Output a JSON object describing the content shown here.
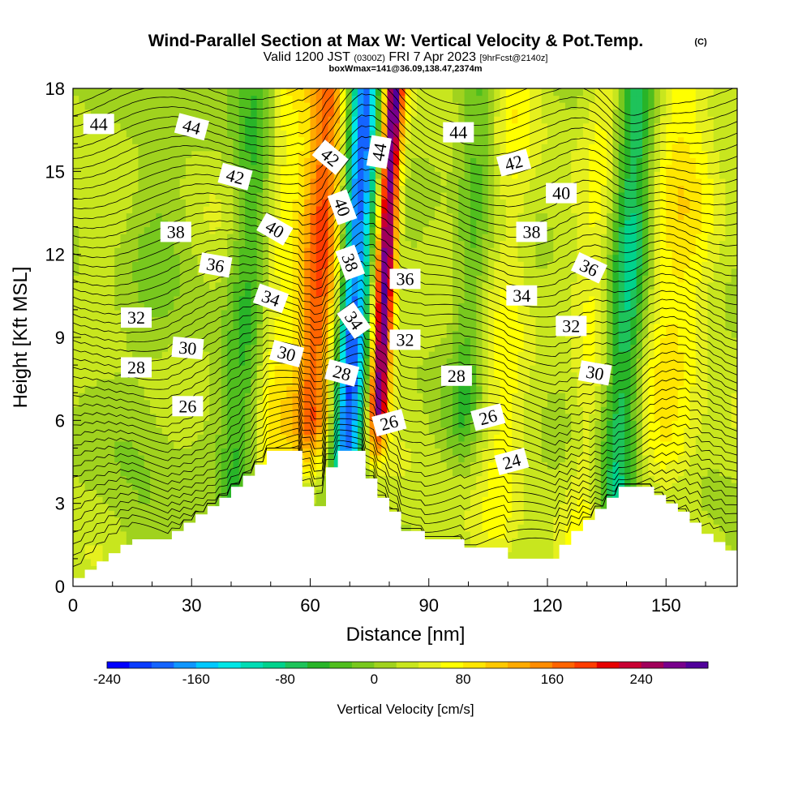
{
  "title": {
    "main": "Wind-Parallel Section at Max W: Vertical Velocity & Pot.Temp.",
    "copyright": "(C)",
    "valid_prefix": "Valid 1200 JST",
    "valid_utc": "(0300Z)",
    "valid_date": "FRI 7 Apr 2023",
    "forecast": "[9hrFcst@2140z]",
    "boxwmax": "boxWmax=141@36.09,138.47,2374m"
  },
  "chart_data": {
    "type": "heatmap",
    "xlabel": "Distance [nm]",
    "ylabel": "Height [Kft MSL]",
    "xlim": [
      0,
      168
    ],
    "ylim": [
      0,
      18
    ],
    "x_ticks": [
      "0",
      "30",
      "60",
      "90",
      "120",
      "150"
    ],
    "x_tick_values": [
      0,
      30,
      60,
      90,
      120,
      150
    ],
    "y_ticks": [
      "0",
      "3",
      "6",
      "9",
      "12",
      "15",
      "18"
    ],
    "y_tick_values": [
      0,
      3,
      6,
      9,
      12,
      15,
      18
    ],
    "colorbar": {
      "label": "Vertical Velocity [cm/s]",
      "range": [
        -240,
        300
      ],
      "tick_labels": [
        "-240",
        "-160",
        "-80",
        "0",
        "80",
        "160",
        "240"
      ],
      "tick_values": [
        -240,
        -160,
        -80,
        0,
        80,
        160,
        240
      ],
      "colors": [
        "#0000ff",
        "#0a3cff",
        "#1464ff",
        "#0f96ff",
        "#00c8ff",
        "#00e6e6",
        "#00dcb4",
        "#00d28c",
        "#1ec35a",
        "#28b428",
        "#50be1e",
        "#78c81e",
        "#a0d21e",
        "#c8e61e",
        "#e6f01e",
        "#ffff00",
        "#ffe600",
        "#ffc800",
        "#ffaa00",
        "#ff8c00",
        "#ff6400",
        "#ff3c00",
        "#e60000",
        "#c80032",
        "#a0005a",
        "#78008c",
        "#50009a"
      ]
    },
    "velocity_features": [
      {
        "center_nm": 62,
        "width_nm": 5,
        "value": 150,
        "ymin": 6
      },
      {
        "center_nm": 71,
        "width_nm": 4,
        "value": -220,
        "ymin": 5
      },
      {
        "center_nm": 78.5,
        "width_nm": 2.5,
        "value": 260,
        "ymin": 6.5
      },
      {
        "center_nm": 52,
        "width_nm": 6,
        "value": 50,
        "ymin": 0
      },
      {
        "center_nm": 44,
        "width_nm": 5,
        "value": -70,
        "ymin": 3
      },
      {
        "center_nm": 100,
        "width_nm": 4,
        "value": -50,
        "ymin": 6
      },
      {
        "center_nm": 110,
        "width_nm": 5,
        "value": 40,
        "ymin": 2
      },
      {
        "center_nm": 140,
        "width_nm": 5,
        "value": -110,
        "ymin": 3
      },
      {
        "center_nm": 152,
        "width_nm": 8,
        "value": 60,
        "ymin": 5
      },
      {
        "center_nm": 20,
        "width_nm": 8,
        "value": -20,
        "ymin": 0
      },
      {
        "center_nm": 132,
        "width_nm": 5,
        "value": 40,
        "ymin": 2
      }
    ],
    "theta_contour_labels": [
      {
        "text": "44",
        "x": 6.5,
        "y": 16.7,
        "angle": 0
      },
      {
        "text": "44",
        "x": 30,
        "y": 16.6,
        "angle": 15
      },
      {
        "text": "42",
        "x": 41,
        "y": 14.8,
        "angle": 15
      },
      {
        "text": "38",
        "x": 26,
        "y": 12.8,
        "angle": 0
      },
      {
        "text": "40",
        "x": 51,
        "y": 12.9,
        "angle": 30
      },
      {
        "text": "36",
        "x": 36,
        "y": 11.6,
        "angle": 10
      },
      {
        "text": "34",
        "x": 50,
        "y": 10.4,
        "angle": 20
      },
      {
        "text": "32",
        "x": 16,
        "y": 9.7,
        "angle": 0
      },
      {
        "text": "30",
        "x": 29,
        "y": 8.6,
        "angle": 5
      },
      {
        "text": "30",
        "x": 54,
        "y": 8.4,
        "angle": 15
      },
      {
        "text": "28",
        "x": 16,
        "y": 7.9,
        "angle": 0
      },
      {
        "text": "26",
        "x": 29,
        "y": 6.5,
        "angle": 0
      },
      {
        "text": "42",
        "x": 65,
        "y": 15.5,
        "angle": 40
      },
      {
        "text": "40",
        "x": 68,
        "y": 13.7,
        "angle": 70
      },
      {
        "text": "38",
        "x": 70,
        "y": 11.7,
        "angle": 70
      },
      {
        "text": "34",
        "x": 71,
        "y": 9.6,
        "angle": 55
      },
      {
        "text": "28",
        "x": 68,
        "y": 7.7,
        "angle": 15
      },
      {
        "text": "44",
        "x": 77.5,
        "y": 15.7,
        "angle": -80
      },
      {
        "text": "36",
        "x": 84,
        "y": 11.1,
        "angle": 0
      },
      {
        "text": "32",
        "x": 84,
        "y": 8.9,
        "angle": 0
      },
      {
        "text": "26",
        "x": 80,
        "y": 5.9,
        "angle": -15
      },
      {
        "text": "44",
        "x": 97.5,
        "y": 16.4,
        "angle": 0
      },
      {
        "text": "42",
        "x": 111.5,
        "y": 15.3,
        "angle": -15
      },
      {
        "text": "40",
        "x": 123.5,
        "y": 14.2,
        "angle": 0
      },
      {
        "text": "38",
        "x": 116,
        "y": 12.8,
        "angle": 0
      },
      {
        "text": "36",
        "x": 130.5,
        "y": 11.5,
        "angle": 25
      },
      {
        "text": "34",
        "x": 113.5,
        "y": 10.5,
        "angle": 0
      },
      {
        "text": "32",
        "x": 126,
        "y": 9.4,
        "angle": 0
      },
      {
        "text": "30",
        "x": 132,
        "y": 7.7,
        "angle": 10
      },
      {
        "text": "28",
        "x": 97,
        "y": 7.6,
        "angle": 0
      },
      {
        "text": "26",
        "x": 105,
        "y": 6.1,
        "angle": -15
      },
      {
        "text": "24",
        "x": 111,
        "y": 4.5,
        "angle": -15
      }
    ],
    "terrain": [
      [
        0,
        0.3
      ],
      [
        3,
        0.3
      ],
      [
        3,
        0.6
      ],
      [
        6,
        0.6
      ],
      [
        6,
        0.9
      ],
      [
        9,
        0.9
      ],
      [
        9,
        1.2
      ],
      [
        12,
        1.2
      ],
      [
        12,
        1.5
      ],
      [
        15,
        1.5
      ],
      [
        15,
        1.7
      ],
      [
        25,
        1.7
      ],
      [
        25,
        2.0
      ],
      [
        28,
        2.0
      ],
      [
        28,
        2.3
      ],
      [
        31,
        2.3
      ],
      [
        31,
        2.6
      ],
      [
        34,
        2.6
      ],
      [
        34,
        2.9
      ],
      [
        37,
        2.9
      ],
      [
        37,
        3.2
      ],
      [
        40,
        3.2
      ],
      [
        40,
        3.6
      ],
      [
        43,
        3.6
      ],
      [
        43,
        4.0
      ],
      [
        46,
        4.0
      ],
      [
        46,
        4.4
      ],
      [
        49,
        4.4
      ],
      [
        49,
        4.9
      ],
      [
        58,
        4.9
      ],
      [
        58,
        3.6
      ],
      [
        61,
        3.6
      ],
      [
        61,
        2.9
      ],
      [
        64,
        2.9
      ],
      [
        64,
        4.3
      ],
      [
        67,
        4.3
      ],
      [
        67,
        4.9
      ],
      [
        74,
        4.9
      ],
      [
        74,
        3.9
      ],
      [
        77,
        3.9
      ],
      [
        77,
        3.2
      ],
      [
        80,
        3.2
      ],
      [
        80,
        2.7
      ],
      [
        83,
        2.7
      ],
      [
        83,
        2.0
      ],
      [
        89,
        2.0
      ],
      [
        89,
        1.7
      ],
      [
        99,
        1.7
      ],
      [
        99,
        1.4
      ],
      [
        110,
        1.4
      ],
      [
        110,
        1.0
      ],
      [
        123,
        1.0
      ],
      [
        123,
        1.5
      ],
      [
        126,
        1.5
      ],
      [
        126,
        2.0
      ],
      [
        129,
        2.0
      ],
      [
        129,
        2.4
      ],
      [
        132,
        2.4
      ],
      [
        132,
        2.8
      ],
      [
        135,
        2.8
      ],
      [
        135,
        3.2
      ],
      [
        138,
        3.2
      ],
      [
        138,
        3.6
      ],
      [
        147,
        3.6
      ],
      [
        147,
        3.3
      ],
      [
        150,
        3.3
      ],
      [
        150,
        3.0
      ],
      [
        153,
        3.0
      ],
      [
        153,
        2.7
      ],
      [
        156,
        2.7
      ],
      [
        156,
        2.3
      ],
      [
        159,
        2.3
      ],
      [
        159,
        1.9
      ],
      [
        162,
        1.9
      ],
      [
        162,
        1.6
      ],
      [
        165,
        1.6
      ],
      [
        165,
        1.3
      ],
      [
        168,
        1.3
      ]
    ]
  }
}
